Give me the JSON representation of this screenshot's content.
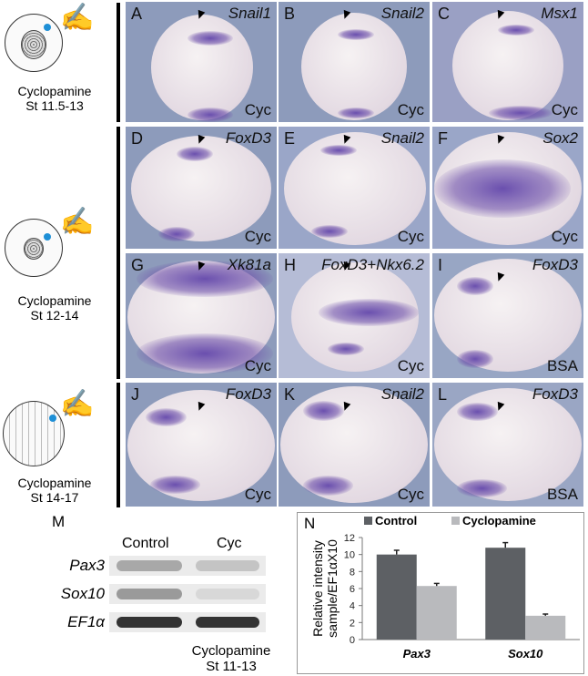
{
  "side_labels": [
    {
      "line1": "Cyclopamine",
      "line2": "St 11.5-13"
    },
    {
      "line1": "Cyclopamine",
      "line2": "St 12-14"
    },
    {
      "line1": "Cyclopamine",
      "line2": "St 14-17"
    }
  ],
  "panels": [
    {
      "label": "A",
      "gene": "Snail1",
      "condition": "Cyc"
    },
    {
      "label": "B",
      "gene": "Snail2",
      "condition": "Cyc"
    },
    {
      "label": "C",
      "gene": "Msx1",
      "condition": "Cyc"
    },
    {
      "label": "D",
      "gene": "FoxD3",
      "condition": "Cyc"
    },
    {
      "label": "E",
      "gene": "Snail2",
      "condition": "Cyc"
    },
    {
      "label": "F",
      "gene": "Sox2",
      "condition": "Cyc"
    },
    {
      "label": "G",
      "gene": "Xk81a",
      "condition": "Cyc"
    },
    {
      "label": "H",
      "gene": "FoxD3+Nkx6.2",
      "condition": "Cyc"
    },
    {
      "label": "I",
      "gene": "FoxD3",
      "condition": "BSA"
    },
    {
      "label": "J",
      "gene": "FoxD3",
      "condition": "Cyc"
    },
    {
      "label": "K",
      "gene": "Snail2",
      "condition": "Cyc"
    },
    {
      "label": "L",
      "gene": "FoxD3",
      "condition": "BSA"
    }
  ],
  "gel": {
    "label": "M",
    "columns": [
      "Control",
      "Cyc"
    ],
    "rows": [
      "Pax3",
      "Sox10",
      "EF1α"
    ],
    "caption_line1": "Cyclopamine",
    "caption_line2": "St 11-13"
  },
  "chart_data": {
    "label": "N",
    "type": "bar",
    "categories": [
      "Pax3",
      "Sox10"
    ],
    "series": [
      {
        "name": "Control",
        "values": [
          10.0,
          10.8
        ],
        "errors": [
          0.5,
          0.6
        ],
        "color": "#5d6064"
      },
      {
        "name": "Cyclopamine",
        "values": [
          6.3,
          2.8
        ],
        "errors": [
          0.3,
          0.2
        ],
        "color": "#b9babd"
      }
    ],
    "ylabel_line1": "Relative intensity",
    "ylabel_line2": "sample/EF1αX10",
    "ylim": [
      0,
      12
    ],
    "yticks": [
      "0",
      "2",
      "4",
      "6",
      "8",
      "10",
      "12"
    ],
    "legend": "top",
    "grid": false
  }
}
